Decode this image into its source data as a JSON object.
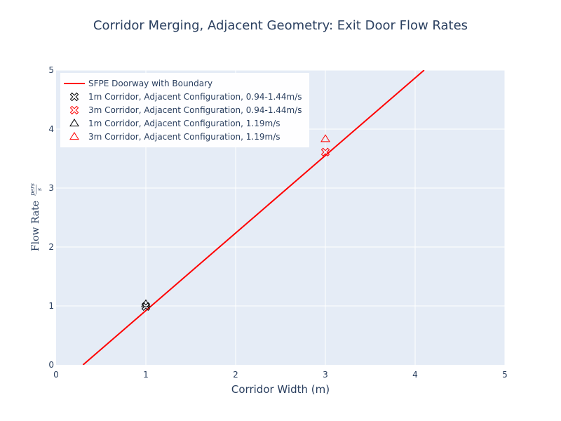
{
  "chart_data": {
    "type": "scatter",
    "title": "Corridor Merging, Adjacent Geometry: Exit Door Flow Rates",
    "xlabel": "Corridor Width (m)",
    "ylabel": {
      "text": "Flow Rate",
      "frac_num": "pers",
      "frac_den": "s"
    },
    "xlim": [
      0,
      5
    ],
    "ylim": [
      0,
      5
    ],
    "xticks": [
      "0",
      "1",
      "2",
      "3",
      "4",
      "5"
    ],
    "yticks": [
      "0",
      "1",
      "2",
      "3",
      "4",
      "5"
    ],
    "grid": true,
    "legend_position": "top-left",
    "colors": {
      "plot_bg": "#e5ecf6",
      "grid": "#ffffff",
      "text": "#2a3f5f",
      "red": "#ff0000",
      "black": "#000000"
    },
    "series": [
      {
        "name": "SFPE Doorway with Boundary",
        "kind": "line",
        "color": "#ff0000",
        "x": [
          0.3,
          4.1
        ],
        "y": [
          0.0,
          5.0
        ]
      },
      {
        "name": "1m Corridor, Adjacent Configuration, 0.94-1.44m/s",
        "kind": "marker",
        "symbol": "x-open",
        "color": "#000000",
        "x": [
          1.0
        ],
        "y": [
          0.99
        ]
      },
      {
        "name": "3m Corridor, Adjacent Configuration, 0.94-1.44m/s",
        "kind": "marker",
        "symbol": "x-open",
        "color": "#ff0000",
        "x": [
          3.0
        ],
        "y": [
          3.61
        ]
      },
      {
        "name": "1m Corridor, Adjacent Configuration, 1.19m/s",
        "kind": "marker",
        "symbol": "triangle-open",
        "color": "#000000",
        "x": [
          1.0
        ],
        "y": [
          1.03
        ]
      },
      {
        "name": "3m Corridor, Adjacent Configuration, 1.19m/s",
        "kind": "marker",
        "symbol": "triangle-open",
        "color": "#ff0000",
        "x": [
          3.0
        ],
        "y": [
          3.83
        ]
      }
    ]
  }
}
